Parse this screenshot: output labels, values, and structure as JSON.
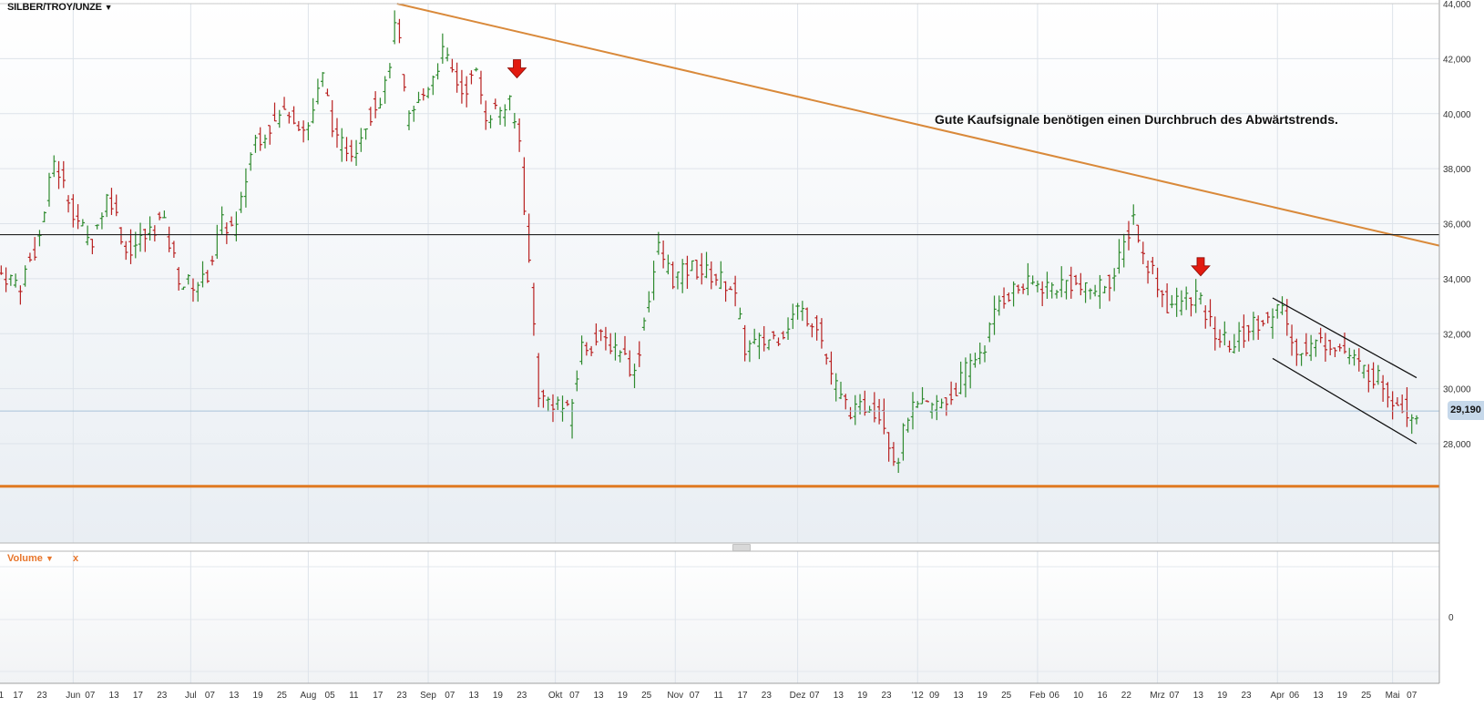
{
  "symbol": {
    "label": "SILBER/TROY/UNZE",
    "caret": "▼"
  },
  "annotation": "Gute Kaufsignale benötigen einen Durchbruch des Abwärtstrends.",
  "last_price": "29,190",
  "volume_panel": {
    "label": "Volume",
    "caret": "▼",
    "close": "x",
    "axis_label": "0"
  },
  "colors": {
    "up": "#2e8a2e",
    "down": "#b82020",
    "trend_line": "#d9893a",
    "support_line": "#e07a22",
    "resistance_line": "#222222",
    "channel": "#111111",
    "signal_arrow": "#e21b10",
    "last_price_bg": "#c6d8ea"
  },
  "chart_data": {
    "type": "ohlc",
    "title": "SILBER/TROY/UNZE",
    "ylim": [
      25500,
      44000
    ],
    "y_ticks": [
      "44,000",
      "42,000",
      "40,000",
      "38,000",
      "36,000",
      "34,000",
      "32,000",
      "30,000",
      "28,000"
    ],
    "y_tick_values": [
      44000,
      42000,
      40000,
      38000,
      36000,
      34000,
      32000,
      30000,
      28000
    ],
    "x_ticks": [
      "1",
      "17",
      "23",
      "Jun",
      "07",
      "13",
      "17",
      "23",
      "Jul",
      "07",
      "13",
      "19",
      "25",
      "Aug",
      "05",
      "11",
      "17",
      "23",
      "Sep",
      "07",
      "13",
      "19",
      "23",
      "Okt",
      "07",
      "13",
      "19",
      "25",
      "Nov",
      "07",
      "11",
      "17",
      "23",
      "Dez",
      "07",
      "13",
      "19",
      "23",
      "'12",
      "09",
      "13",
      "19",
      "25",
      "Feb",
      "06",
      "10",
      "16",
      "22",
      "Mrz",
      "07",
      "13",
      "19",
      "23",
      "Apr",
      "06",
      "13",
      "19",
      "25",
      "Mai",
      "07"
    ],
    "x_tick_index": [
      0,
      7,
      17,
      30,
      37,
      47,
      57,
      67,
      79,
      87,
      97,
      107,
      117,
      128,
      137,
      147,
      157,
      167,
      178,
      187,
      197,
      207,
      217,
      231,
      239,
      249,
      259,
      269,
      281,
      289,
      299,
      309,
      319,
      332,
      339,
      349,
      359,
      369,
      382,
      389,
      399,
      409,
      419,
      432,
      439,
      449,
      459,
      469,
      482,
      489,
      499,
      509,
      519,
      532,
      539,
      549,
      559,
      569,
      580,
      588
    ],
    "bars_n": 600,
    "price_anchors": [
      [
        0,
        34200
      ],
      [
        8,
        33800
      ],
      [
        16,
        35500
      ],
      [
        22,
        38300
      ],
      [
        30,
        36500
      ],
      [
        37,
        35200
      ],
      [
        45,
        37200
      ],
      [
        52,
        35000
      ],
      [
        60,
        35500
      ],
      [
        67,
        36200
      ],
      [
        75,
        33800
      ],
      [
        85,
        33900
      ],
      [
        92,
        36000
      ],
      [
        98,
        35800
      ],
      [
        105,
        39000
      ],
      [
        113,
        39600
      ],
      [
        120,
        40200
      ],
      [
        127,
        39300
      ],
      [
        134,
        41300
      ],
      [
        140,
        38900
      ],
      [
        147,
        38700
      ],
      [
        153,
        39900
      ],
      [
        160,
        40900
      ],
      [
        165,
        43500
      ],
      [
        169,
        39700
      ],
      [
        175,
        40500
      ],
      [
        184,
        42200
      ],
      [
        192,
        40800
      ],
      [
        198,
        41400
      ],
      [
        202,
        40000
      ],
      [
        212,
        40300
      ],
      [
        216,
        39000
      ],
      [
        219,
        35600
      ],
      [
        221,
        33500
      ],
      [
        224,
        29900
      ],
      [
        226,
        29600
      ],
      [
        232,
        29500
      ],
      [
        237,
        29000
      ],
      [
        242,
        31500
      ],
      [
        250,
        31800
      ],
      [
        258,
        31500
      ],
      [
        264,
        30500
      ],
      [
        269,
        33000
      ],
      [
        274,
        35100
      ],
      [
        280,
        34000
      ],
      [
        288,
        34400
      ],
      [
        297,
        34100
      ],
      [
        305,
        33700
      ],
      [
        310,
        31500
      ],
      [
        318,
        31700
      ],
      [
        325,
        32000
      ],
      [
        332,
        32900
      ],
      [
        340,
        32400
      ],
      [
        345,
        30800
      ],
      [
        350,
        29600
      ],
      [
        356,
        29100
      ],
      [
        362,
        29500
      ],
      [
        368,
        28800
      ],
      [
        373,
        27200
      ],
      [
        378,
        29100
      ],
      [
        384,
        29300
      ],
      [
        390,
        29400
      ],
      [
        396,
        29700
      ],
      [
        403,
        30800
      ],
      [
        410,
        31600
      ],
      [
        416,
        33200
      ],
      [
        422,
        33600
      ],
      [
        430,
        33800
      ],
      [
        438,
        33700
      ],
      [
        445,
        33900
      ],
      [
        452,
        33500
      ],
      [
        459,
        33800
      ],
      [
        464,
        34100
      ],
      [
        468,
        35200
      ],
      [
        472,
        36300
      ],
      [
        476,
        34800
      ],
      [
        480,
        34300
      ],
      [
        486,
        33000
      ],
      [
        492,
        33200
      ],
      [
        498,
        33400
      ],
      [
        503,
        32500
      ],
      [
        508,
        31800
      ],
      [
        514,
        31600
      ],
      [
        521,
        32300
      ],
      [
        526,
        32600
      ],
      [
        530,
        32400
      ],
      [
        534,
        33100
      ],
      [
        538,
        31600
      ],
      [
        544,
        31500
      ],
      [
        550,
        31700
      ],
      [
        555,
        31700
      ],
      [
        562,
        31200
      ],
      [
        567,
        30700
      ],
      [
        572,
        30500
      ],
      [
        576,
        30200
      ],
      [
        580,
        29700
      ],
      [
        584,
        29400
      ],
      [
        588,
        29100
      ],
      [
        590,
        29190
      ]
    ],
    "annotations": [
      {
        "type": "trend_line",
        "from": [
          165,
          44000
        ],
        "to": [
          600,
          35200
        ]
      },
      {
        "type": "horizontal_line",
        "value": 35600
      },
      {
        "type": "horizontal_line",
        "value": 26450
      },
      {
        "type": "last_price_line",
        "value": 29190
      },
      {
        "type": "channel_line",
        "from": [
          530,
          33300
        ],
        "to": [
          590,
          30400
        ]
      },
      {
        "type": "channel_line",
        "from": [
          530,
          31100
        ],
        "to": [
          590,
          28000
        ]
      },
      {
        "type": "sell_arrow",
        "at": [
          215,
          41500
        ]
      },
      {
        "type": "sell_arrow",
        "at": [
          500,
          34300
        ]
      }
    ]
  }
}
